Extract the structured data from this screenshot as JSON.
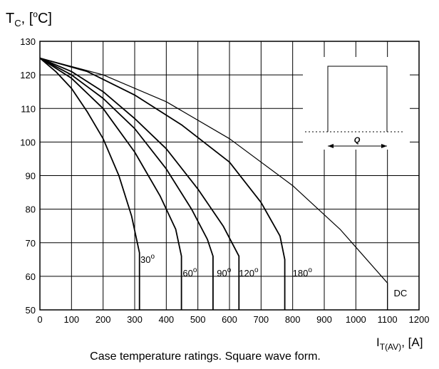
{
  "chart_data": {
    "type": "line",
    "ylabel": {
      "main": "T",
      "sub": "C",
      "unit_open": ", [",
      "sup": "o",
      "unit_close": "C]"
    },
    "xlabel": {
      "main": "I",
      "sub": "T(AV)",
      "unit": ", [A]"
    },
    "xlim": [
      0,
      1200
    ],
    "ylim": [
      50,
      130
    ],
    "xticks": [
      "0",
      "100",
      "200",
      "300",
      "400",
      "500",
      "600",
      "700",
      "800",
      "900",
      "1000",
      "1100",
      "1200"
    ],
    "yticks": [
      "50",
      "60",
      "70",
      "80",
      "90",
      "100",
      "110",
      "120",
      "130"
    ],
    "grid": true,
    "series": [
      {
        "name": "30",
        "label_sup": "o",
        "label_at": [
          318,
          64
        ],
        "points": [
          [
            0,
            125
          ],
          [
            50,
            121
          ],
          [
            100,
            116
          ],
          [
            150,
            109
          ],
          [
            200,
            101
          ],
          [
            250,
            90
          ],
          [
            290,
            78
          ],
          [
            315,
            67
          ],
          [
            315,
            50
          ]
        ]
      },
      {
        "name": "60",
        "label_sup": "o",
        "label_at": [
          452,
          60
        ],
        "points": [
          [
            0,
            125
          ],
          [
            100,
            119
          ],
          [
            200,
            110
          ],
          [
            300,
            97
          ],
          [
            380,
            84
          ],
          [
            430,
            74
          ],
          [
            448,
            66
          ],
          [
            448,
            50
          ]
        ]
      },
      {
        "name": "90",
        "label_sup": "o",
        "label_at": [
          560,
          60
        ],
        "points": [
          [
            0,
            125
          ],
          [
            100,
            120
          ],
          [
            200,
            113
          ],
          [
            300,
            104
          ],
          [
            400,
            92
          ],
          [
            480,
            80
          ],
          [
            530,
            71
          ],
          [
            548,
            66
          ],
          [
            548,
            50
          ]
        ]
      },
      {
        "name": "120",
        "label_sup": "o",
        "label_at": [
          630,
          60
        ],
        "points": [
          [
            0,
            125
          ],
          [
            100,
            121
          ],
          [
            200,
            115
          ],
          [
            300,
            107
          ],
          [
            400,
            98
          ],
          [
            500,
            86
          ],
          [
            580,
            75
          ],
          [
            630,
            66
          ],
          [
            630,
            50
          ]
        ]
      },
      {
        "name": "180",
        "label_sup": "o",
        "label_at": [
          800,
          60
        ],
        "points": [
          [
            0,
            125
          ],
          [
            150,
            121
          ],
          [
            300,
            114
          ],
          [
            450,
            105
          ],
          [
            600,
            94
          ],
          [
            700,
            82
          ],
          [
            760,
            72
          ],
          [
            775,
            65
          ],
          [
            775,
            50
          ]
        ]
      },
      {
        "name": "DC",
        "label_sup": "",
        "label_at": [
          1120,
          54
        ],
        "points": [
          [
            0,
            125
          ],
          [
            200,
            120
          ],
          [
            400,
            112
          ],
          [
            600,
            101
          ],
          [
            800,
            87
          ],
          [
            950,
            74
          ],
          [
            1100,
            58
          ],
          [
            1100,
            50
          ]
        ]
      }
    ],
    "inset": {
      "label": "Q"
    }
  },
  "caption": "Case temperature ratings. Square wave form."
}
